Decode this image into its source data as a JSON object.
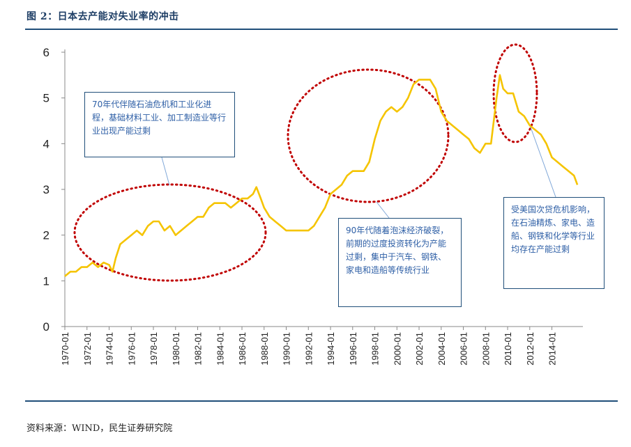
{
  "figure": {
    "title": "图 2：日本去产能对失业率的冲击",
    "source": "资料来源：WIND，民生证券研究院"
  },
  "chart_data": {
    "type": "line",
    "title": "",
    "xlabel": "",
    "ylabel": "",
    "ylim": [
      0,
      6
    ],
    "yticks": [
      "0",
      "1",
      "2",
      "3",
      "4",
      "5",
      "6"
    ],
    "xlim": [
      1970.0,
      2016.8
    ],
    "xticks": [
      "1970-01",
      "1972-01",
      "1974-01",
      "1976-01",
      "1978-01",
      "1980-01",
      "1982-01",
      "1984-01",
      "1986-01",
      "1988-01",
      "1990-01",
      "1992-01",
      "1994-01",
      "1996-01",
      "1998-01",
      "2000-01",
      "2002-01",
      "2004-01",
      "2006-01",
      "2008-01",
      "2010-01",
      "2012-01",
      "2014-01"
    ],
    "grid": false,
    "legend": "none",
    "line_color": "#f5c400",
    "annotation_color": "#1f4e79",
    "ellipse_color": "#c00000",
    "series": [
      {
        "x": [
          1970.0,
          1970.5,
          1971.0,
          1971.5,
          1972.0,
          1972.5,
          1973.0,
          1973.5,
          1974.0,
          1974.3,
          1974.6,
          1975.0,
          1975.5,
          1976.0,
          1976.5,
          1977.0,
          1977.5,
          1978.0,
          1978.5,
          1979.0,
          1979.5,
          1980.0,
          1980.5,
          1981.0,
          1981.5,
          1982.0,
          1982.5,
          1983.0,
          1983.5,
          1984.0,
          1984.5,
          1985.0,
          1985.5,
          1986.0,
          1986.5,
          1987.0,
          1987.3,
          1987.7,
          1988.0,
          1988.5,
          1989.0,
          1989.5,
          1990.0,
          1990.5,
          1991.0,
          1991.5,
          1992.0,
          1992.5,
          1993.0,
          1993.5,
          1994.0,
          1994.5,
          1995.0,
          1995.5,
          1996.0,
          1996.5,
          1997.0,
          1997.5,
          1998.0,
          1998.5,
          1999.0,
          1999.5,
          2000.0,
          2000.5,
          2001.0,
          2001.5,
          2002.0,
          2002.5,
          2003.0,
          2003.5,
          2004.0,
          2004.5,
          2005.0,
          2005.5,
          2006.0,
          2006.5,
          2007.0,
          2007.5,
          2008.0,
          2008.5,
          2009.0,
          2009.3,
          2009.6,
          2010.0,
          2010.5,
          2011.0,
          2011.5,
          2012.0,
          2012.5,
          2013.0,
          2013.5,
          2014.0,
          2014.5,
          2015.0,
          2015.5,
          2016.0,
          2016.3
        ],
        "values": [
          1.1,
          1.2,
          1.2,
          1.3,
          1.3,
          1.4,
          1.3,
          1.4,
          1.35,
          1.2,
          1.5,
          1.8,
          1.9,
          2.0,
          2.1,
          2.0,
          2.2,
          2.3,
          2.3,
          2.1,
          2.2,
          2.0,
          2.1,
          2.2,
          2.3,
          2.4,
          2.4,
          2.6,
          2.7,
          2.7,
          2.7,
          2.6,
          2.7,
          2.8,
          2.8,
          2.9,
          3.05,
          2.8,
          2.6,
          2.4,
          2.3,
          2.2,
          2.1,
          2.1,
          2.1,
          2.1,
          2.1,
          2.2,
          2.4,
          2.6,
          2.9,
          3.0,
          3.1,
          3.3,
          3.4,
          3.4,
          3.4,
          3.6,
          4.1,
          4.5,
          4.7,
          4.8,
          4.7,
          4.8,
          5.0,
          5.3,
          5.4,
          5.4,
          5.4,
          5.2,
          4.7,
          4.5,
          4.4,
          4.3,
          4.2,
          4.1,
          3.9,
          3.8,
          4.0,
          4.0,
          5.0,
          5.5,
          5.2,
          5.1,
          5.1,
          4.7,
          4.6,
          4.4,
          4.3,
          4.2,
          4.0,
          3.7,
          3.6,
          3.5,
          3.4,
          3.3,
          3.1
        ]
      }
    ],
    "annotations": [
      {
        "text": "70年代伴随石油危机和工业化进程，基础材料工业、加工制造业等行业出现产能过剩"
      },
      {
        "text": "90年代随着泡沫经济破裂，前期的过度投资转化为产能过剩，集中于汽车、钢铁、家电和造船等传统行业"
      },
      {
        "text": "受美国次贷危机影响，在石油精炼、家电、造船、钢铁和化学等行业均存在产能过剩"
      }
    ]
  }
}
